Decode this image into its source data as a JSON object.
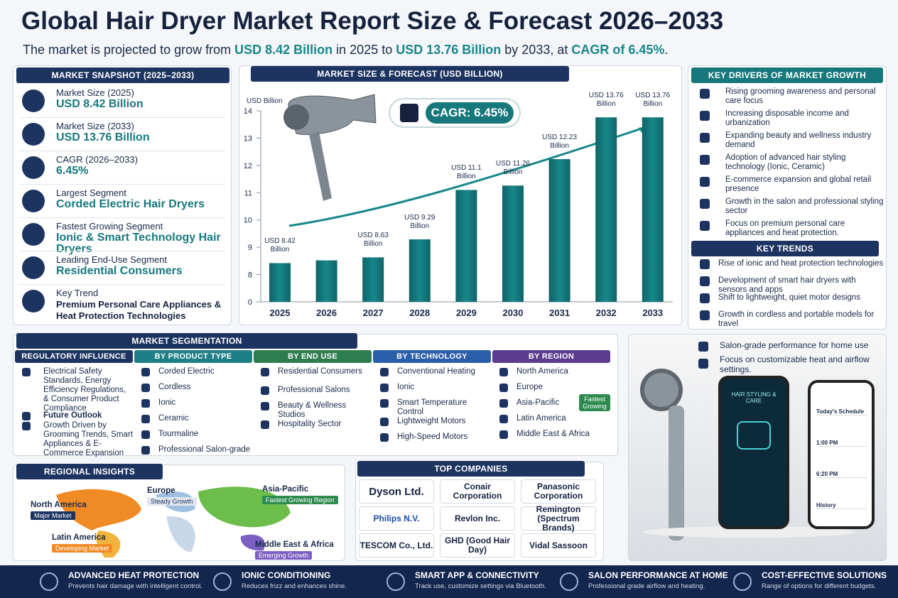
{
  "header": {
    "title": "Global Hair Dryer Market Report Size & Forecast 2026–2033",
    "subtitle": [
      "The market is projected to grow from ",
      "USD 8.42 Billion",
      " in 2025 to ",
      "USD 13.76 Billion",
      " by 2033, at ",
      "CAGR of 6.45%",
      "."
    ]
  },
  "snapshot": {
    "title": "MARKET SNAPSHOT (2025–2033)",
    "items": [
      {
        "label": "Market Size (2025)",
        "value": "USD 8.42 Billion"
      },
      {
        "label": "Market Size (2033)",
        "value": "USD 13.76 Billion"
      },
      {
        "label": "CAGR (2026–2033)",
        "value": "6.45%"
      },
      {
        "label": "Largest Segment",
        "value": "Corded Electric Hair Dryers"
      },
      {
        "label": "Fastest Growing Segment",
        "value": "Ionic & Smart Technology Hair Dryers"
      },
      {
        "label": "Leading End-Use Segment",
        "value": "Residential Consumers"
      },
      {
        "label": "Key Trend",
        "value": "Premium Personal Care Appliances & Heat Protection Technologies"
      }
    ]
  },
  "chart_data": {
    "type": "bar",
    "title": "MARKET SIZE & FORECAST (USD BILLION)",
    "y_label": "USD Billion",
    "badge": "CAGR: 6.45%",
    "categories": [
      "2025",
      "2026",
      "2027",
      "2028",
      "2029",
      "2030",
      "2031",
      "2032",
      "2033"
    ],
    "values": [
      8.42,
      8.52,
      8.63,
      9.29,
      11.1,
      11.26,
      12.23,
      13.76,
      13.76
    ],
    "value_labels": [
      "USD 8.42 Billion",
      null,
      "USD 8.63 Billion",
      "USD 9.29 Billion",
      "USD 11.1 Billion",
      "USD 11.26 Billion",
      "USD 12.23 Billion",
      "USD 13.76 Billion",
      "USD 13.76 Billion"
    ],
    "color": "#17878a",
    "ylim": [
      0,
      14
    ],
    "yticks": [
      0,
      8,
      9,
      10,
      11,
      12,
      13,
      14
    ]
  },
  "drivers": {
    "title": "KEY DRIVERS OF MARKET GROWTH",
    "items": [
      "Rising grooming awareness and personal care focus",
      "Increasing disposable income and urbanization",
      "Expanding beauty and wellness industry demand",
      "Adoption of advanced hair styling technology (Ionic, Ceramic)",
      "E-commerce expansion and global retail presence",
      "Growth in the salon and professional styling sector",
      "Focus on premium personal care appliances and heat protection."
    ]
  },
  "trends": {
    "title": "KEY TRENDS",
    "items": [
      "Rise of ionic and heat protection technologies",
      "Development of smart hair dryers with sensors and apps",
      "Shift to lightweight, quiet motor designs",
      "Growth in cordless and portable models for travel"
    ]
  },
  "promo": {
    "items": [
      "Salon-grade performance for home use",
      "Focus on customizable heat and airflow settings."
    ],
    "phone1": "HAIR STYLING & CARE",
    "phone2": [
      "Today's Schedule",
      "1:00 PM",
      "6:20 PM",
      "History"
    ]
  },
  "segmentation": {
    "title": "MARKET SEGMENTATION",
    "columns": [
      {
        "title": "REGULATORY INFLUENCE",
        "items": [
          "Electrical Safety Standards, Energy Efficiency Regulations, & Consumer Product Compliance",
          "Future Outlook",
          "Growth Driven by Grooming Trends, Smart Appliances & E-Commerce Expansion"
        ]
      },
      {
        "title": "BY PRODUCT TYPE",
        "items": [
          "Corded Electric",
          "Cordless",
          "Ionic",
          "Ceramic",
          "Tourmaline",
          "Professional Salon-grade"
        ]
      },
      {
        "title": "BY END USE",
        "items": [
          "Residential Consumers",
          "Professional Salons",
          "Beauty & Wellness Studios",
          "Hospitality Sector"
        ]
      },
      {
        "title": "BY TECHNOLOGY",
        "items": [
          "Conventional Heating",
          "Ionic",
          "Smart Temperature Control",
          "Lightweight Motors",
          "High-Speed Motors"
        ]
      },
      {
        "title": "BY REGION",
        "items": [
          "North America",
          "Europe",
          "Asia-Pacific",
          "Latin America",
          "Middle East & Africa"
        ],
        "badge": "Fastest Growing"
      }
    ]
  },
  "regional": {
    "title": "REGIONAL INSIGHTS",
    "regions": [
      {
        "name": "North America",
        "note": "Major Market"
      },
      {
        "name": "Europe",
        "note": "Steady Growth"
      },
      {
        "name": "Asia-Pacific",
        "note": "Fastest Growing Region"
      },
      {
        "name": "Latin America",
        "note": "Developing Market"
      },
      {
        "name": "Middle East & Africa",
        "note": "Emerging Growth"
      }
    ]
  },
  "companies": {
    "title": "TOP COMPANIES",
    "items": [
      "Dyson Ltd.",
      "Conair Corporation",
      "Panasonic Corporation",
      "Philips N.V.",
      "Revlon Inc.",
      "Remington (Spectrum Brands)",
      "TESCOM Co., Ltd.",
      "GHD (Good Hair Day)",
      "Vidal Sassoon"
    ]
  },
  "footer": {
    "items": [
      {
        "title": "ADVANCED HEAT PROTECTION",
        "text": "Prevents hair damage with intelligent control."
      },
      {
        "title": "IONIC CONDITIONING",
        "text": "Reduces frizz and enhances shine."
      },
      {
        "title": "SMART APP & CONNECTIVITY",
        "text": "Track use, customize settings via Bluetooth."
      },
      {
        "title": "SALON PERFORMANCE AT HOME",
        "text": "Professional grade airflow and heating."
      },
      {
        "title": "COST-EFFECTIVE SOLUTIONS",
        "text": "Range of options for different budgets."
      }
    ]
  }
}
